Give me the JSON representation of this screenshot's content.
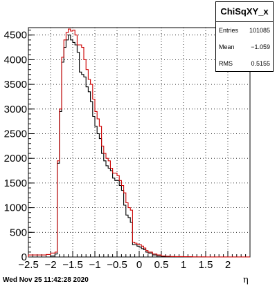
{
  "chart_data": {
    "type": "histogram",
    "title": "",
    "xlabel": "η",
    "ylabel": "",
    "xlim": [
      -2.5,
      2.5
    ],
    "ylim": [
      0,
      4650
    ],
    "xticks": [
      -2.5,
      -2,
      -1.5,
      -1,
      -0.5,
      0,
      0.5,
      1,
      1.5,
      2
    ],
    "xtick_labels": [
      "−2.5",
      "−2",
      "−1.5",
      "−1",
      "−0.5",
      "0",
      "0.5",
      "1",
      "1.5",
      "2"
    ],
    "yticks": [
      0,
      500,
      1000,
      1500,
      2000,
      2500,
      3000,
      3500,
      4000,
      4500
    ],
    "ytick_labels": [
      "0",
      "500",
      "1000",
      "1500",
      "2000",
      "2500",
      "3000",
      "3500",
      "4000",
      "4500"
    ],
    "grid": true,
    "bin_edges": [
      -2.5,
      -2.4,
      -2.3,
      -2.2,
      -2.1,
      -2.0,
      -1.9,
      -1.85,
      -1.8,
      -1.75,
      -1.7,
      -1.65,
      -1.6,
      -1.55,
      -1.5,
      -1.45,
      -1.4,
      -1.35,
      -1.3,
      -1.25,
      -1.2,
      -1.15,
      -1.1,
      -1.05,
      -1.0,
      -0.95,
      -0.9,
      -0.85,
      -0.8,
      -0.75,
      -0.7,
      -0.65,
      -0.6,
      -0.55,
      -0.5,
      -0.45,
      -0.4,
      -0.35,
      -0.3,
      -0.25,
      -0.2,
      -0.15,
      -0.1,
      -0.05,
      0.0,
      0.05,
      0.1,
      0.15,
      0.2,
      0.3,
      0.4,
      0.5,
      0.6,
      0.7,
      0.8,
      1.0,
      1.2,
      1.5,
      2.0,
      2.5
    ],
    "series": [
      {
        "name": "",
        "color": "#000000",
        "values": [
          0,
          0,
          0,
          0,
          0,
          20,
          60,
          1900,
          2950,
          3950,
          4250,
          4400,
          4500,
          4400,
          4350,
          4300,
          4150,
          3750,
          3700,
          3650,
          3450,
          3350,
          3150,
          2850,
          2650,
          2500,
          2400,
          2100,
          1950,
          1850,
          1800,
          1750,
          1600,
          1550,
          1550,
          1450,
          1350,
          1050,
          850,
          800,
          700,
          250,
          250,
          220,
          200,
          170,
          150,
          100,
          80,
          40,
          20,
          10,
          10,
          5,
          5,
          2,
          0,
          0,
          0
        ]
      },
      {
        "name": "",
        "color": "#cc0000",
        "values": [
          40,
          40,
          40,
          40,
          50,
          80,
          100,
          1950,
          3000,
          4050,
          4400,
          4550,
          4620,
          4580,
          4600,
          4500,
          4300,
          4300,
          4250,
          4000,
          3800,
          3600,
          3500,
          3200,
          2950,
          2800,
          2650,
          2250,
          2100,
          2000,
          1950,
          1800,
          1700,
          1700,
          1650,
          1550,
          1450,
          1300,
          1100,
          1000,
          950,
          300,
          280,
          260,
          250,
          220,
          180,
          130,
          100,
          60,
          40,
          20,
          15,
          10,
          8,
          5,
          3,
          2,
          2
        ]
      }
    ]
  },
  "stats": {
    "title": "ChiSqXY_x",
    "entries_label": "Entries",
    "entries_value": "101085",
    "mean_label": "Mean",
    "mean_value": "−1.059",
    "rms_label": "RMS",
    "rms_value": "0.5155"
  },
  "footer": {
    "date_stamp": "Wed Nov 25 11:42:28 2020"
  }
}
